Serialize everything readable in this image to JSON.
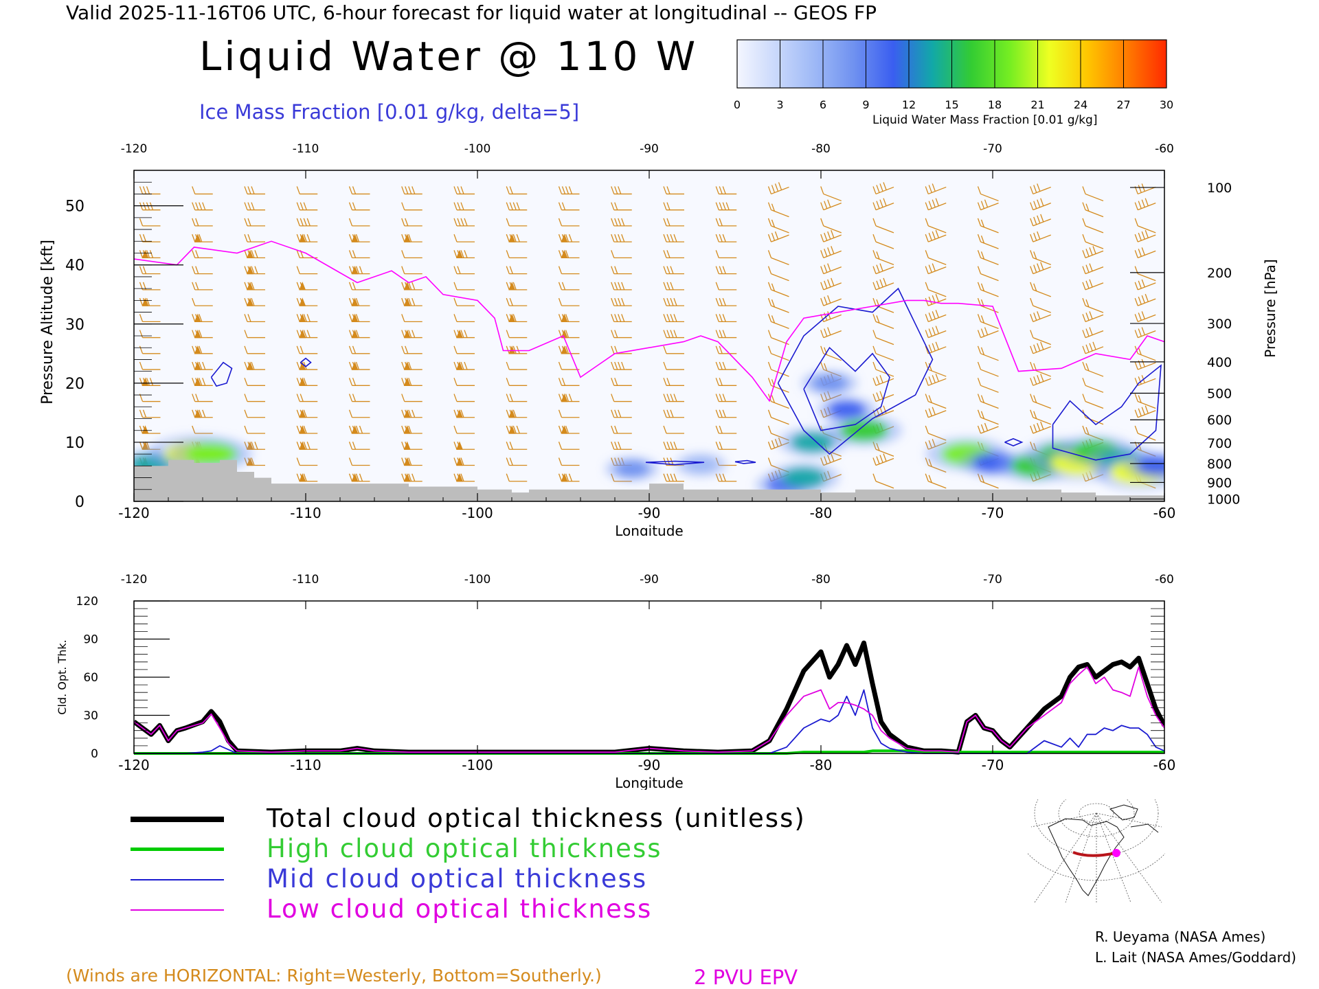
{
  "header": {
    "line": "Valid 2025-11-16T06 UTC, 6-hour forecast for liquid water at longitudinal -- GEOS FP",
    "title": "Liquid Water @ 110 W",
    "subtitle": "Ice Mass Fraction [0.01 g/kg, delta=5]"
  },
  "colorbar": {
    "ticks": [
      "0",
      "3",
      "6",
      "9",
      "12",
      "15",
      "18",
      "21",
      "24",
      "27",
      "30"
    ],
    "label": "Liquid Water Mass Fraction [0.01 g/kg]",
    "colors": [
      "#f4f6ff",
      "#c9d8fb",
      "#9db8f6",
      "#6f91f0",
      "#3a5ef0",
      "#12a8a8",
      "#33cc33",
      "#77ee22",
      "#eeff22",
      "#ffc400",
      "#ff7a00",
      "#ff2a00"
    ]
  },
  "colors": {
    "ice_contour": "#1a1ad0",
    "epv_line": "#ff00ff",
    "wind_barbs": "#d48a1c",
    "terrain": "#bdbdbd",
    "total": "#000000",
    "high": "#00cc00",
    "mid": "#1a1ad0",
    "low": "#e000e0"
  },
  "chart_data": [
    {
      "type": "heatmap",
      "name": "liquid-water-cross-section",
      "xlabel": "Longitude",
      "ylabel": "Pressure Altitude [kft]",
      "y2label": "Pressure [hPa]",
      "xlim": [
        -120,
        -60
      ],
      "ylim": [
        0,
        56
      ],
      "x_ticks": [
        "-120",
        "-110",
        "-100",
        "-90",
        "-80",
        "-70",
        "-60"
      ],
      "top_ticks": [
        "-120",
        "-110",
        "-100",
        "-90",
        "-80",
        "-70",
        "-60"
      ],
      "y_ticks": [
        "0",
        "10",
        "20",
        "30",
        "40",
        "50"
      ],
      "pressure_ticks": [
        {
          "label": "100",
          "kft": 53.1
        },
        {
          "label": "200",
          "kft": 38.7
        },
        {
          "label": "300",
          "kft": 30.1
        },
        {
          "label": "400",
          "kft": 23.6
        },
        {
          "label": "500",
          "kft": 18.3
        },
        {
          "label": "600",
          "kft": 13.8
        },
        {
          "label": "700",
          "kft": 9.9
        },
        {
          "label": "800",
          "kft": 6.4
        },
        {
          "label": "900",
          "kft": 3.2
        },
        {
          "label": "1000",
          "kft": 0.4
        }
      ],
      "liquid_water_blobs": [
        {
          "lon": -119.0,
          "kft": 6.2,
          "value": 14
        },
        {
          "lon": -116.5,
          "kft": 8.0,
          "value": 22
        },
        {
          "lon": -115.5,
          "kft": 8.0,
          "value": 18
        },
        {
          "lon": -91.0,
          "kft": 5.5,
          "value": 8
        },
        {
          "lon": -87.0,
          "kft": 6.2,
          "value": 7
        },
        {
          "lon": -82.0,
          "kft": 2.8,
          "value": 11
        },
        {
          "lon": -81.0,
          "kft": 4.0,
          "value": 14
        },
        {
          "lon": -80.5,
          "kft": 10.0,
          "value": 13
        },
        {
          "lon": -79.5,
          "kft": 20.0,
          "value": 9
        },
        {
          "lon": -78.5,
          "kft": 15.5,
          "value": 10
        },
        {
          "lon": -77.5,
          "kft": 12.0,
          "value": 16
        },
        {
          "lon": -71.5,
          "kft": 8.0,
          "value": 18
        },
        {
          "lon": -70.0,
          "kft": 6.5,
          "value": 12
        },
        {
          "lon": -67.5,
          "kft": 6.0,
          "value": 17
        },
        {
          "lon": -66.0,
          "kft": 8.0,
          "value": 15
        },
        {
          "lon": -65.0,
          "kft": 6.5,
          "value": 20
        },
        {
          "lon": -64.0,
          "kft": 8.5,
          "value": 16
        },
        {
          "lon": -62.5,
          "kft": 7.0,
          "value": 14
        },
        {
          "lon": -61.5,
          "kft": 5.0,
          "value": 21
        },
        {
          "lon": -60.5,
          "kft": 6.0,
          "value": 12
        }
      ],
      "ice_contours": [
        [
          [
            -115.5,
            21
          ],
          [
            -114.8,
            23.5
          ],
          [
            -114.3,
            22.5
          ],
          [
            -114.6,
            20
          ],
          [
            -115.2,
            19.5
          ],
          [
            -115.5,
            21
          ]
        ],
        [
          [
            -110.3,
            23.5
          ],
          [
            -110,
            24.2
          ],
          [
            -109.7,
            23.5
          ],
          [
            -110,
            22.8
          ],
          [
            -110.3,
            23.5
          ]
        ],
        [
          [
            -82.5,
            20
          ],
          [
            -81,
            28
          ],
          [
            -79,
            33
          ],
          [
            -77,
            32
          ],
          [
            -75.5,
            36
          ],
          [
            -74.5,
            30
          ],
          [
            -73.5,
            24
          ],
          [
            -74.5,
            18
          ],
          [
            -77,
            14
          ],
          [
            -79.5,
            8
          ],
          [
            -81,
            12
          ],
          [
            -82.5,
            20
          ]
        ],
        [
          [
            -81,
            19
          ],
          [
            -79.5,
            26
          ],
          [
            -78,
            22
          ],
          [
            -77,
            25
          ],
          [
            -76,
            21
          ],
          [
            -76.5,
            16
          ],
          [
            -78,
            13
          ],
          [
            -80,
            12
          ],
          [
            -81,
            19
          ]
        ],
        [
          [
            -90.2,
            6.6
          ],
          [
            -88.5,
            6.8
          ],
          [
            -86.8,
            6.6
          ],
          [
            -88.5,
            6.2
          ],
          [
            -90.2,
            6.6
          ]
        ],
        [
          [
            -85,
            6.7
          ],
          [
            -84.3,
            6.9
          ],
          [
            -83.8,
            6.6
          ],
          [
            -84.5,
            6.4
          ],
          [
            -85,
            6.7
          ]
        ],
        [
          [
            -66.5,
            13
          ],
          [
            -65.5,
            17
          ],
          [
            -64,
            13
          ],
          [
            -62.5,
            16
          ],
          [
            -61.5,
            20
          ],
          [
            -60.2,
            23
          ],
          [
            -60.5,
            12
          ],
          [
            -62,
            8
          ],
          [
            -64,
            7
          ],
          [
            -66.5,
            9
          ],
          [
            -66.5,
            13
          ]
        ],
        [
          [
            -69.3,
            10
          ],
          [
            -68.8,
            10.6
          ],
          [
            -68.3,
            10
          ],
          [
            -68.8,
            9.4
          ],
          [
            -69.3,
            10
          ]
        ]
      ],
      "epv_2pvu": {
        "lon": [
          -120,
          -117.5,
          -116.5,
          -114,
          -112,
          -110,
          -108.5,
          -107,
          -105,
          -104,
          -103,
          -102,
          -100,
          -99,
          -98.5,
          -97,
          -95,
          -94,
          -93,
          -92,
          -90,
          -88,
          -87,
          -86,
          -84,
          -83,
          -82,
          -81,
          -79,
          -77,
          -75,
          -74,
          -73,
          -72,
          -70,
          -68.5,
          -66,
          -64,
          -62,
          -61,
          -60
        ],
        "kft": [
          41,
          40,
          43,
          42,
          44,
          42,
          39.5,
          37,
          39,
          37,
          38,
          35,
          34,
          31,
          25.5,
          25.5,
          28,
          21,
          23,
          25,
          26,
          27,
          28,
          27,
          21,
          17,
          27,
          31,
          32,
          33,
          34,
          34,
          33.5,
          33.5,
          33,
          22,
          22.5,
          25,
          24,
          28,
          27
        ]
      },
      "terrain": {
        "lon": [
          -120,
          -118,
          -116.5,
          -115,
          -114,
          -113,
          -112,
          -110,
          -108,
          -106,
          -104,
          -102,
          -100,
          -98,
          -97,
          -96,
          -94,
          -92,
          -90,
          -88,
          -86,
          -84,
          -82,
          -80,
          -78,
          -76,
          -74,
          -72,
          -70,
          -68,
          -66,
          -64,
          -62,
          -60
        ],
        "kft": [
          6,
          7,
          6.5,
          7,
          5,
          4,
          3,
          3,
          3,
          3,
          2.5,
          2.5,
          2,
          1.5,
          2,
          2,
          2,
          2,
          3,
          2,
          2,
          2,
          2,
          1.5,
          2,
          2,
          2,
          2,
          2,
          2,
          1.5,
          1,
          1,
          1
        ]
      },
      "annotation": "2 PVU EPV"
    },
    {
      "type": "line",
      "name": "cloud-optical-thickness",
      "xlabel": "Longitude",
      "ylabel": "Cld. Opt. Thk.",
      "xlim": [
        -120,
        -60
      ],
      "ylim": [
        0,
        120
      ],
      "x_ticks": [
        "-120",
        "-110",
        "-100",
        "-90",
        "-80",
        "-70",
        "-60"
      ],
      "top_ticks": [
        "-120",
        "-110",
        "-100",
        "-90",
        "-80",
        "-70",
        "-60"
      ],
      "y_ticks": [
        "0",
        "30",
        "60",
        "90",
        "120"
      ],
      "x": [
        -120,
        -119,
        -118.5,
        -118,
        -117.5,
        -117,
        -116,
        -115.5,
        -115,
        -114.5,
        -114,
        -112,
        -110,
        -108,
        -107,
        -106,
        -104,
        -100,
        -96,
        -92,
        -90,
        -88,
        -86,
        -84,
        -83,
        -82,
        -81,
        -80,
        -79.5,
        -79,
        -78.5,
        -78,
        -77.5,
        -77,
        -76.5,
        -76,
        -75,
        -74,
        -73,
        -72,
        -71.5,
        -71,
        -70.5,
        -70,
        -69.5,
        -69,
        -68,
        -67,
        -66,
        -65.5,
        -65,
        -64.5,
        -64,
        -63.5,
        -63,
        -62.5,
        -62,
        -61.5,
        -61,
        -60.5,
        -60
      ],
      "series": [
        {
          "name": "Total cloud optical thickness (unitless)",
          "values": [
            25,
            15,
            22,
            10,
            18,
            20,
            25,
            33,
            25,
            10,
            2,
            1,
            2,
            2,
            4,
            2,
            1,
            1,
            1,
            1,
            4,
            2,
            1,
            2,
            10,
            35,
            65,
            80,
            60,
            70,
            85,
            70,
            87,
            55,
            25,
            15,
            5,
            2,
            2,
            1,
            25,
            30,
            20,
            18,
            10,
            5,
            20,
            35,
            45,
            60,
            68,
            70,
            60,
            65,
            70,
            72,
            68,
            75,
            55,
            35,
            22
          ]
        },
        {
          "name": "High cloud optical thickness",
          "values": [
            0,
            0,
            0,
            0,
            0,
            0,
            0,
            0,
            0,
            0,
            0,
            0,
            0,
            0,
            0,
            0,
            0,
            0,
            0,
            0,
            0,
            0,
            0,
            0,
            0,
            0,
            1,
            1,
            1,
            1,
            1,
            1,
            1,
            2,
            2,
            2,
            2,
            1,
            1,
            1,
            1,
            1,
            1,
            1,
            1,
            1,
            1,
            1,
            1,
            1,
            1,
            1,
            1,
            1,
            1,
            1,
            1,
            1,
            1,
            1,
            1
          ]
        },
        {
          "name": "Mid cloud optical thickness",
          "values": [
            0,
            0,
            0,
            0,
            0,
            0,
            1,
            2,
            6,
            3,
            0,
            0,
            0,
            0,
            0,
            0,
            0,
            0,
            0,
            0,
            0,
            0,
            0,
            0,
            0,
            5,
            20,
            27,
            25,
            30,
            45,
            30,
            50,
            20,
            8,
            4,
            1,
            0,
            0,
            0,
            0,
            0,
            0,
            0,
            0,
            0,
            0,
            10,
            5,
            12,
            5,
            15,
            15,
            20,
            18,
            22,
            20,
            20,
            15,
            5,
            2
          ]
        },
        {
          "name": "Low cloud optical thickness",
          "values": [
            25,
            15,
            22,
            10,
            18,
            20,
            24,
            31,
            20,
            8,
            2,
            1,
            2,
            2,
            4,
            2,
            1,
            1,
            1,
            1,
            4,
            2,
            1,
            2,
            10,
            30,
            45,
            50,
            35,
            40,
            40,
            38,
            35,
            30,
            18,
            12,
            4,
            2,
            2,
            1,
            25,
            30,
            20,
            18,
            10,
            5,
            20,
            30,
            40,
            55,
            62,
            68,
            55,
            60,
            50,
            48,
            45,
            68,
            45,
            30,
            20
          ]
        }
      ]
    }
  ],
  "legend": [
    {
      "text": "Total cloud optical thickness (unitless)",
      "color": "#000000",
      "thickness": 8
    },
    {
      "text": "High cloud optical thickness",
      "color": "#00cc00",
      "thickness": 5
    },
    {
      "text": "Mid cloud optical thickness",
      "color": "#1a1ad0",
      "thickness": 2
    },
    {
      "text": "Low cloud optical thickness",
      "color": "#e000e0",
      "thickness": 2
    }
  ],
  "credits": {
    "line1": "R. Ueyama (NASA Ames)",
    "line2": "L. Lait (NASA Ames/Goddard)"
  },
  "notes": {
    "winds": "(Winds are HORIZONTAL: Right=Westerly, Bottom=Southerly.)",
    "pvu": "2 PVU EPV"
  }
}
